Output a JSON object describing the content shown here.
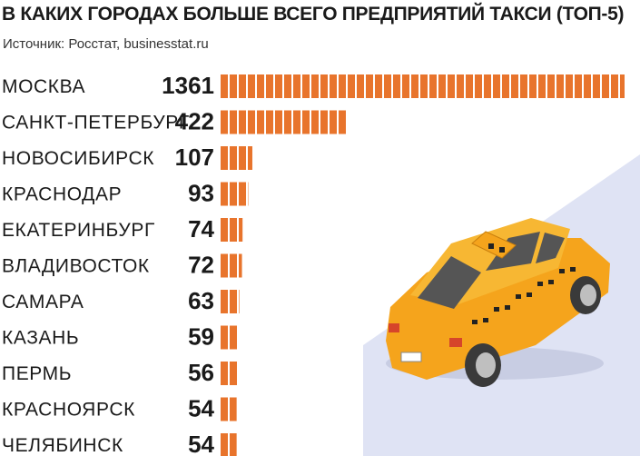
{
  "title": "В КАКИХ ГОРОДАХ БОЛЬШЕ ВСЕГО ПРЕДПРИЯТИЙ ТАКСИ (ТОП-5)",
  "source": "Источник: Росстат, businesstat.ru",
  "colors": {
    "bar": "#e8742c",
    "road": "#dfe3f4",
    "car_body": "#f5a41c",
    "car_roof": "#f7b733",
    "window": "#555555",
    "tire": "#3a3a3a",
    "checker": "#222222"
  },
  "illustration": "taxi-car-on-road",
  "chart_data": {
    "type": "bar",
    "orientation": "horizontal",
    "title": "В КАКИХ ГОРОДАХ БОЛЬШЕ ВСЕГО ПРЕДПРИЯТИЙ ТАКСИ (ТОП-5)",
    "categories": [
      "МОСКВА",
      "САНКТ-ПЕТЕРБУРГ",
      "НОВОСИБИРСК",
      "КРАСНОДАР",
      "ЕКАТЕРИНБУРГ",
      "ВЛАДИВОСТОК",
      "САМАРА",
      "КАЗАНЬ",
      "ПЕРМЬ",
      "КРАСНОЯРСК",
      "ЧЕЛЯБИНСК"
    ],
    "values": [
      1361,
      422,
      107,
      93,
      74,
      72,
      63,
      59,
      56,
      54,
      54
    ],
    "value_labels": [
      "1361",
      "422",
      "107",
      "93",
      "74",
      "72",
      "63",
      "59",
      "56",
      "54",
      "54"
    ],
    "xlim": [
      0,
      1361
    ],
    "grid": false,
    "legend": "none"
  }
}
